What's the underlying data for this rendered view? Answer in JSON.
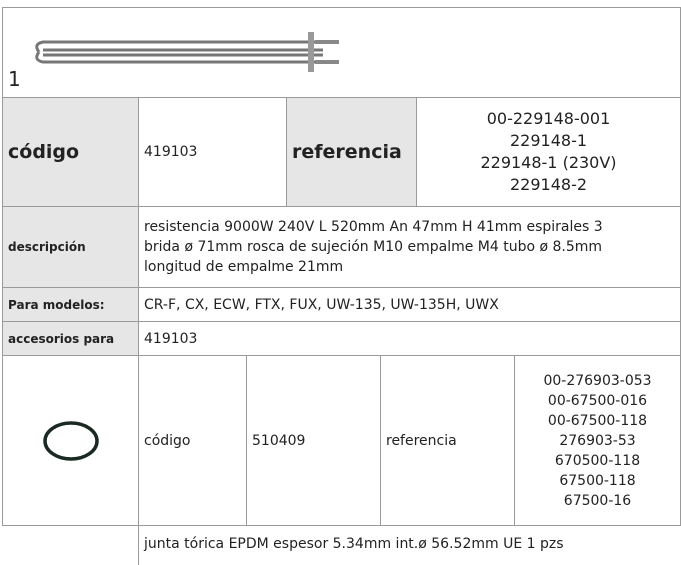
{
  "item": {
    "number": "1"
  },
  "main": {
    "code_label": "código",
    "code": "419103",
    "reference_label": "referencia",
    "references": [
      "00-229148-001",
      "229148-1",
      "229148-1 (230V)",
      "229148-2"
    ]
  },
  "description": {
    "label": "descripción",
    "lines": [
      "resistencia  9000W 240V L 520mm An 47mm H 41mm espirales 3",
      "brida ø 71mm rosca de sujeción M10 empalme M4 tubo ø 8.5mm",
      "longitud de empalme 21mm"
    ]
  },
  "models": {
    "label": "Para modelos:",
    "text": "CR-F, CX, ECW, FTX, FUX, UW-135, UW-135H, UWX"
  },
  "accessories": {
    "label": "accesorios para",
    "text": "419103"
  },
  "accessory": {
    "code_label": "código",
    "code": "510409",
    "reference_label": "referencia",
    "references": [
      "00-276903-053",
      "00-67500-016",
      "00-67500-118",
      "276903-53",
      "670500-118",
      "67500-118",
      "67500-16"
    ],
    "description": "junta tórica  EPDM espesor  5.34mm int.ø 56.52mm UE 1 pzs"
  }
}
